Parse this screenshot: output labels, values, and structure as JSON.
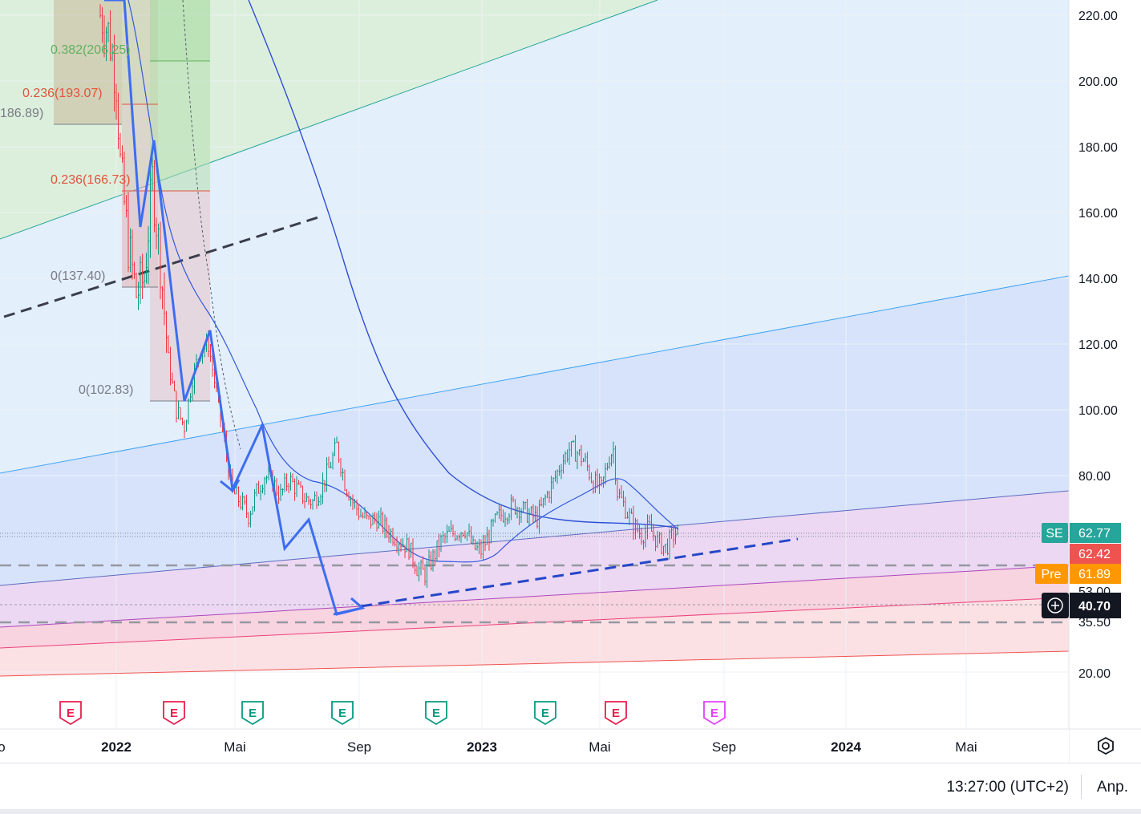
{
  "chart_data": {
    "type": "candlestick",
    "y_axis": {
      "ticks": [
        "220.00",
        "200.00",
        "180.00",
        "160.00",
        "140.00",
        "120.00",
        "100.00",
        "80.00",
        "20.00"
      ],
      "partly_hidden_ticks": [
        "53.00",
        "35.50"
      ]
    },
    "x_axis": {
      "ticks": [
        "o",
        "2022",
        "Mai",
        "Sep",
        "2023",
        "Mai",
        "Sep",
        "2024",
        "Mai"
      ],
      "bold": [
        "2022",
        "2023",
        "2024"
      ]
    },
    "price_labels": [
      {
        "prefix": "SE",
        "value": "62.77",
        "color": "#26a69a"
      },
      {
        "prefix": "",
        "value": "62.42",
        "color": "#ef5350"
      },
      {
        "prefix": "Pre",
        "value": "61.89",
        "color": "#ff9800"
      },
      {
        "prefix": "+",
        "value": "40.70",
        "color": "#131722"
      }
    ],
    "fib_labels": [
      {
        "text": "0.382(206.25)",
        "color": "#5fb15f"
      },
      {
        "text": "0.236(193.07)",
        "color": "#e0533a"
      },
      {
        "text": "186.89)",
        "color": "#787b86"
      },
      {
        "text": "0.236(166.73)",
        "color": "#e0533a"
      },
      {
        "text": "0(137.40)",
        "color": "#787b86"
      },
      {
        "text": "0(102.83)",
        "color": "#787b86"
      }
    ],
    "earnings_markers": [
      {
        "letter": "E",
        "color": "#e91e4d"
      },
      {
        "letter": "E",
        "color": "#e91e4d"
      },
      {
        "letter": "E",
        "color": "#089981"
      },
      {
        "letter": "E",
        "color": "#089981"
      },
      {
        "letter": "E",
        "color": "#089981"
      },
      {
        "letter": "E",
        "color": "#089981"
      },
      {
        "letter": "E",
        "color": "#e91e4d"
      },
      {
        "letter": "E",
        "color": "#e040fb"
      }
    ],
    "price_path_approx": [
      [
        125,
        220
      ],
      [
        135,
        215
      ],
      [
        145,
        200
      ],
      [
        150,
        175
      ],
      [
        160,
        150
      ],
      [
        170,
        135
      ],
      [
        180,
        140
      ],
      [
        190,
        170
      ],
      [
        200,
        145
      ],
      [
        210,
        115
      ],
      [
        220,
        100
      ],
      [
        230,
        95
      ],
      [
        240,
        110
      ],
      [
        250,
        118
      ],
      [
        260,
        120
      ],
      [
        270,
        105
      ],
      [
        280,
        90
      ],
      [
        290,
        75
      ],
      [
        300,
        72
      ],
      [
        310,
        68
      ],
      [
        320,
        75
      ],
      [
        330,
        80
      ],
      [
        340,
        78
      ],
      [
        350,
        74
      ],
      [
        360,
        79
      ],
      [
        370,
        76
      ],
      [
        380,
        73
      ],
      [
        390,
        72
      ],
      [
        400,
        76
      ],
      [
        410,
        82
      ],
      [
        420,
        89
      ],
      [
        430,
        78
      ],
      [
        440,
        72
      ],
      [
        450,
        68
      ],
      [
        460,
        66
      ],
      [
        470,
        67
      ],
      [
        480,
        64
      ],
      [
        490,
        62
      ],
      [
        500,
        60
      ],
      [
        510,
        58
      ],
      [
        520,
        52
      ],
      [
        530,
        50
      ],
      [
        540,
        55
      ],
      [
        550,
        60
      ],
      [
        560,
        62
      ],
      [
        570,
        63
      ],
      [
        580,
        64
      ],
      [
        590,
        58
      ],
      [
        600,
        57
      ],
      [
        610,
        62
      ],
      [
        620,
        67
      ],
      [
        630,
        69
      ],
      [
        640,
        71
      ],
      [
        650,
        70
      ],
      [
        660,
        68
      ],
      [
        670,
        67
      ],
      [
        680,
        73
      ],
      [
        690,
        78
      ],
      [
        700,
        84
      ],
      [
        710,
        88
      ],
      [
        720,
        87
      ],
      [
        730,
        84
      ],
      [
        740,
        78
      ],
      [
        750,
        76
      ],
      [
        760,
        86
      ],
      [
        765,
        88
      ],
      [
        770,
        75
      ],
      [
        780,
        70
      ],
      [
        790,
        65
      ],
      [
        800,
        62
      ],
      [
        810,
        64
      ],
      [
        820,
        60
      ],
      [
        830,
        58
      ],
      [
        840,
        62
      ],
      [
        846,
        63
      ]
    ],
    "colors": {
      "up": "#089981",
      "down": "#f23645",
      "ma": "#2962ff"
    }
  },
  "footer": {
    "time": "13:27:00 (UTC+2)",
    "adjustment": "Anp."
  },
  "icons": {
    "settings": "gear-icon",
    "crosshair": "plus-circle-icon"
  }
}
